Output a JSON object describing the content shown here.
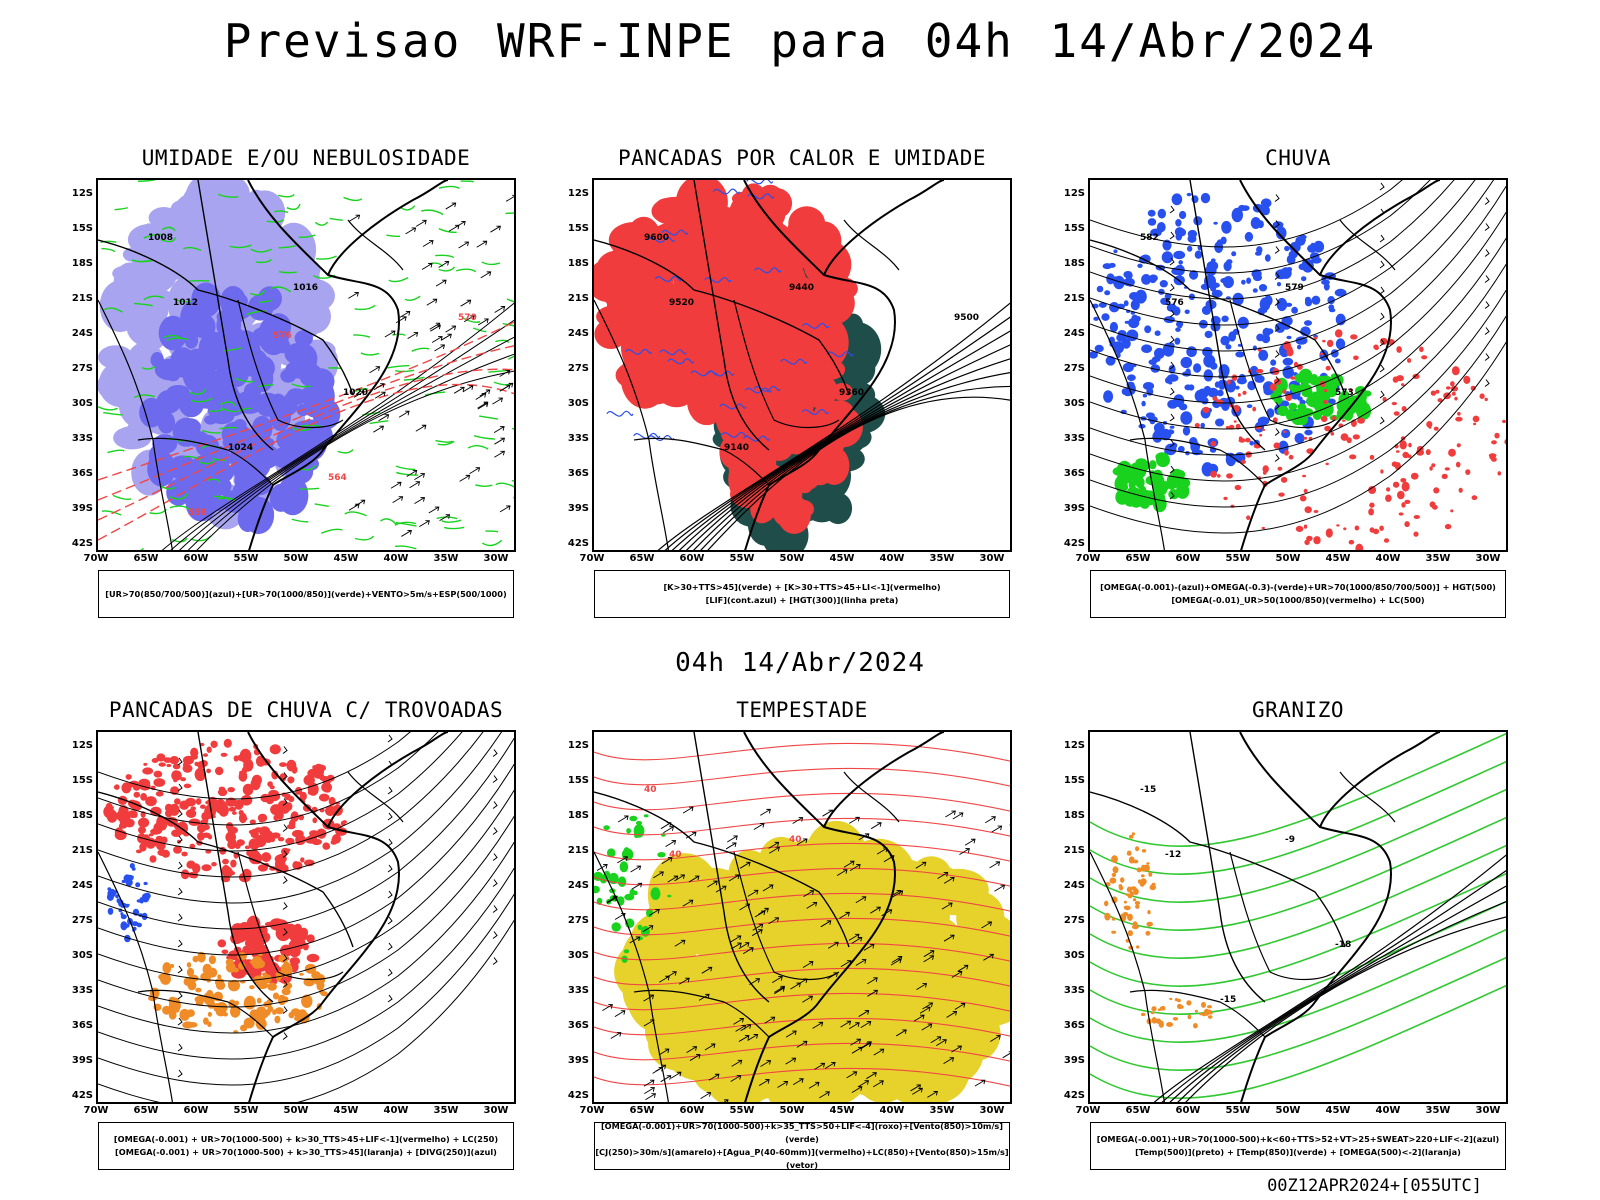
{
  "page": {
    "title": "Previsao WRF-INPE  para 04h 14/Abr/2024",
    "mid_title": "04h 14/Abr/2024",
    "footer": "00Z12APR2024+[055UTC]"
  },
  "axes": {
    "lat_labels": [
      "12S",
      "15S",
      "18S",
      "21S",
      "24S",
      "27S",
      "30S",
      "33S",
      "36S",
      "39S",
      "42S"
    ],
    "lon_labels": [
      "70W",
      "65W",
      "60W",
      "55W",
      "50W",
      "45W",
      "40W",
      "35W",
      "30W"
    ]
  },
  "colors": {
    "light_violet": "#a8a4f0",
    "violet": "#6e6aee",
    "red": "#f03c3c",
    "green": "#19d21e",
    "blue": "#2850ef",
    "dark_teal": "#1f4d4a",
    "orange": "#f08c28",
    "yellow": "#e6d22a",
    "contour_green": "#32c832",
    "contour_red": "#f04646"
  },
  "panels": [
    {
      "id": "umidade",
      "title": "UMIDADE E/OU NEBULOSIDADE",
      "legend": [
        "[UR>70(850/700/500)](azul)+[UR>70(1000/850)](verde)+VENTO>5m/s+ESP(500/1000)"
      ],
      "contour_labels": [
        {
          "text": "1008",
          "color": "#000000"
        },
        {
          "text": "1012",
          "color": "#000000"
        },
        {
          "text": "1016",
          "color": "#000000"
        },
        {
          "text": "1020",
          "color": "#000000"
        },
        {
          "text": "1024",
          "color": "#000000"
        },
        {
          "text": "570",
          "color": "#f04646"
        },
        {
          "text": "576",
          "color": "#f04646"
        },
        {
          "text": "564",
          "color": "#f04646"
        },
        {
          "text": "558",
          "color": "#f04646"
        }
      ]
    },
    {
      "id": "pancadas-calor",
      "title": "PANCADAS POR CALOR E UMIDADE",
      "legend": [
        "[K>30+TTS>45](verde) + [K>30+TTS>45+LI<-1](vermelho)",
        "[LIF](cont.azul) + [HGT(300)](linha preta)"
      ],
      "contour_labels": [
        {
          "text": "9600",
          "color": "#000000"
        },
        {
          "text": "9520",
          "color": "#000000"
        },
        {
          "text": "9440",
          "color": "#000000"
        },
        {
          "text": "9360",
          "color": "#000000"
        },
        {
          "text": "9140",
          "color": "#000000"
        },
        {
          "text": "9500",
          "color": "#000000"
        }
      ]
    },
    {
      "id": "chuva",
      "title": "CHUVA",
      "legend": [
        "[OMEGA(-0.001)-(azul)+OMEGA(-0.3)-(verde)+UR>70(1000/850/700/500)] + HGT(500)",
        "[OMEGA(-0.01)_UR>50(1000/850)(vermelho) + LC(500)"
      ],
      "contour_labels": [
        {
          "text": "582",
          "color": "#000000"
        },
        {
          "text": "576",
          "color": "#000000"
        },
        {
          "text": "579",
          "color": "#000000"
        },
        {
          "text": "573",
          "color": "#000000"
        }
      ]
    },
    {
      "id": "trovoadas",
      "title": "PANCADAS DE CHUVA C/ TROVOADAS",
      "legend": [
        "[OMEGA(-0.001) + UR>70(1000-500) + k>30_TTS>45+LIF<-1](vermelho) + LC(250)",
        "[OMEGA(-0.001) + UR>70(1000-500) + k>30_TTS>45](laranja) + [DIVG(250)](azul)"
      ],
      "contour_labels": []
    },
    {
      "id": "tempestade",
      "title": "TEMPESTADE",
      "legend": [
        "[OMEGA(-0.001)+UR>70(1000-500)+k>35_TTS>50+LIF<-4](roxo)+[Vento(850)>10m/s](verde)",
        "[CJ(250)>30m/s](amarelo)+[Agua_P(40-60mm)](vermelho)+LC(850)+[Vento(850)>15m/s](vetor)"
      ],
      "contour_labels": [
        {
          "text": "40",
          "color": "#f04646"
        },
        {
          "text": "40",
          "color": "#f04646"
        },
        {
          "text": "40",
          "color": "#f04646"
        }
      ]
    },
    {
      "id": "granizo",
      "title": "GRANIZO",
      "legend": [
        "[OMEGA(-0.001)+UR>70(1000-500)+k<60+TTS>52+VT>25+SWEAT>220+LIF<-2](azul)",
        "[Temp(500)](preto) + [Temp(850)](verde) + [OMEGA(500)<-2](laranja)"
      ],
      "contour_labels": [
        {
          "text": "-15",
          "color": "#000000"
        },
        {
          "text": "-12",
          "color": "#000000"
        },
        {
          "text": "-9",
          "color": "#000000"
        },
        {
          "text": "-18",
          "color": "#000000"
        },
        {
          "text": "-15",
          "color": "#000000"
        }
      ]
    }
  ]
}
